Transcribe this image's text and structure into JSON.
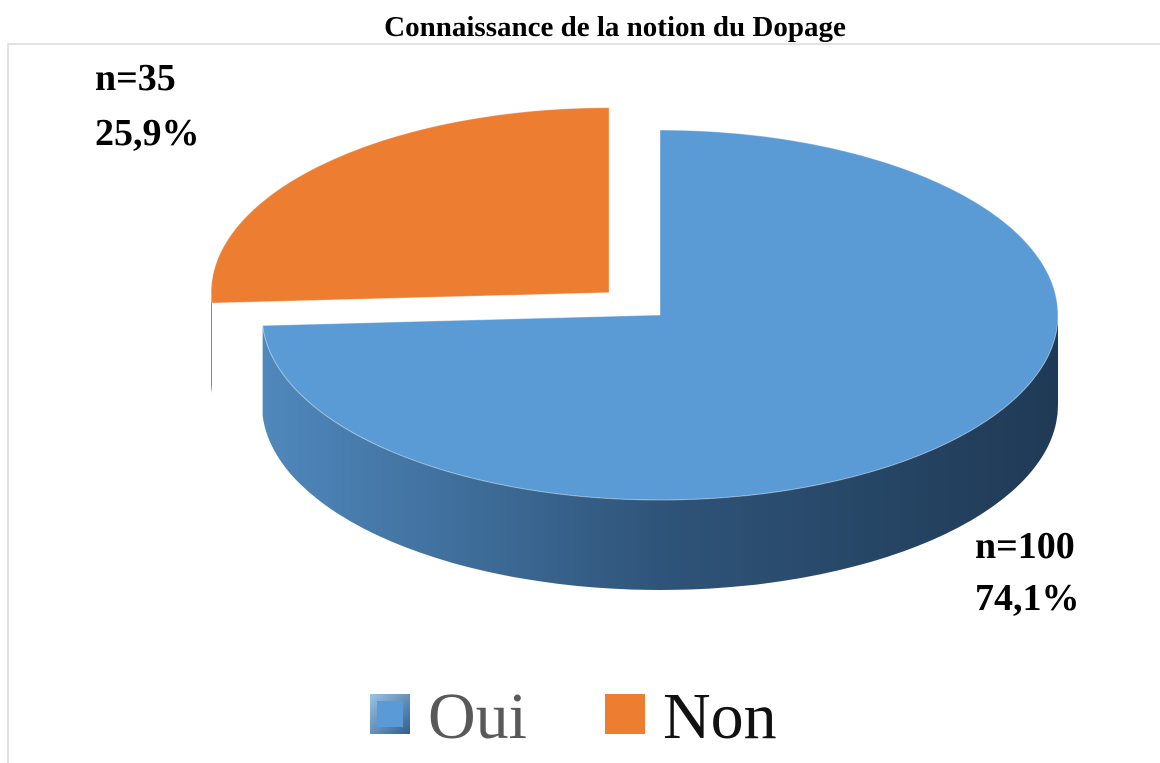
{
  "chart_data": {
    "type": "pie3d",
    "title": "Connaissance de la notion du Dopage",
    "categories": [
      "Oui",
      "Non"
    ],
    "values": [
      74.1,
      25.9
    ],
    "value_labels": [
      "74,1%",
      "25,9%"
    ],
    "counts": [
      100,
      35
    ],
    "count_labels": [
      "n=100",
      "n=35"
    ],
    "colors": [
      "#5b9bd5",
      "#ed7d31"
    ],
    "legend": "bottom"
  }
}
